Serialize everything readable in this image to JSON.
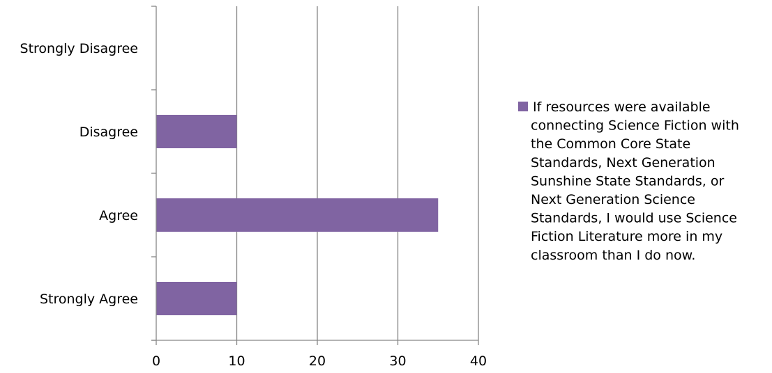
{
  "chart_data": {
    "type": "bar",
    "orientation": "horizontal",
    "categories": [
      "Strongly Agree",
      "Agree",
      "Disagree",
      "Strongly Disagree"
    ],
    "series": [
      {
        "name": "If resources were available connecting Science Fiction with the Common Core State Standards, Next Generation Sunshine State Standards, or Next Generation Science Standards, I would use Science Fiction Literature more in my classroom than I do now.",
        "values": [
          10,
          35,
          10,
          0
        ],
        "color": "#8064a2"
      }
    ],
    "xlim": [
      0,
      40
    ],
    "x_ticks": [
      "0",
      "10",
      "20",
      "30",
      "40"
    ],
    "grid": true,
    "legend_position": "right",
    "legend_lines": [
      "If resources were available",
      "connecting Science Fiction with",
      "the Common Core State",
      "Standards, Next Generation",
      "Sunshine State Standards, or",
      "Next Generation Science",
      "Standards, I would use Science",
      "Fiction Literature more in my",
      "classroom than I do now."
    ]
  }
}
